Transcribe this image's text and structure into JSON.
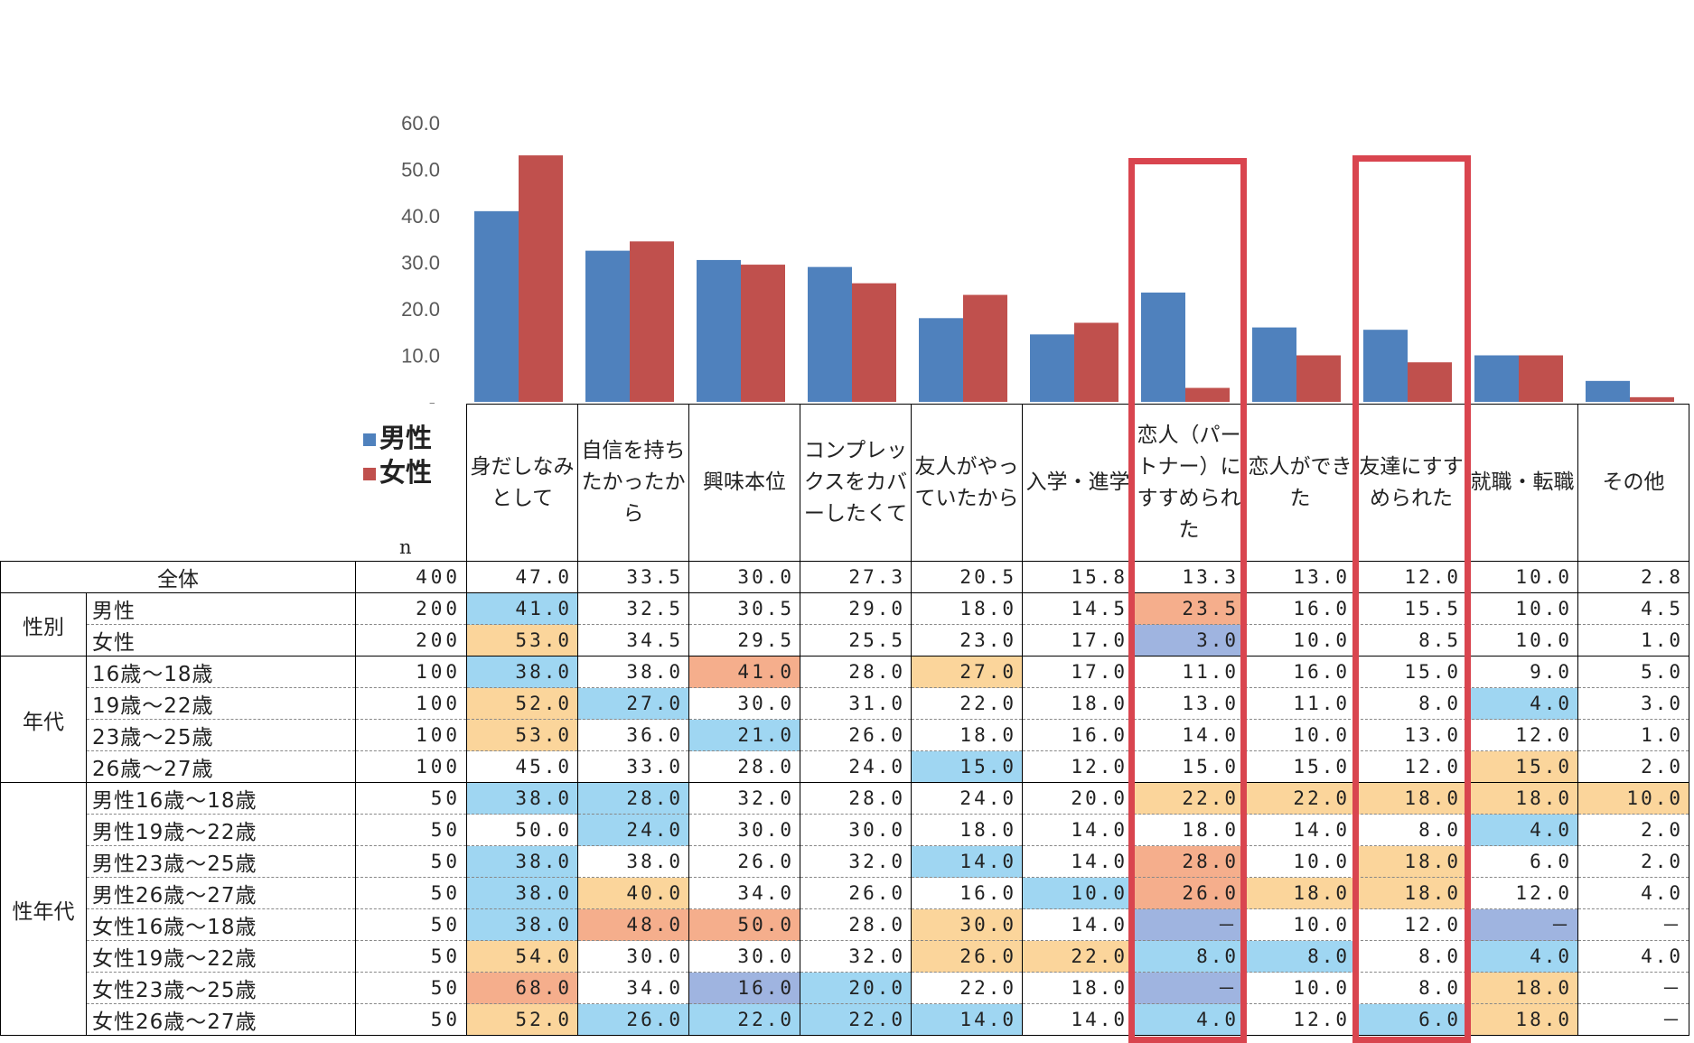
{
  "chart_data": {
    "type": "bar",
    "title": "",
    "categories": [
      "身だしなみとして",
      "自信を持ちたかったから",
      "興味本位",
      "コンプレックスをカバーしたくて",
      "友人がやっていたから",
      "入学・進学",
      "恋人（パートナー）にすすめられた",
      "恋人ができた",
      "友達にすすめられた",
      "就職・転職",
      "その他"
    ],
    "series": [
      {
        "name": "男性",
        "color": "#4f81bd",
        "values": [
          41.0,
          32.5,
          30.5,
          29.0,
          18.0,
          14.5,
          23.5,
          16.0,
          15.5,
          10.0,
          4.5
        ]
      },
      {
        "name": "女性",
        "color": "#c0504d",
        "values": [
          53.0,
          34.5,
          29.5,
          25.5,
          23.0,
          17.0,
          3.0,
          10.0,
          8.5,
          10.0,
          1.0
        ]
      }
    ],
    "y_ticks": [
      "60.0",
      "50.0",
      "40.0",
      "30.0",
      "20.0",
      "10.0",
      "-"
    ],
    "ylim": [
      0,
      60
    ],
    "xlabel": "",
    "ylabel": ""
  },
  "legend": {
    "male": "男性",
    "female": "女性"
  },
  "n_label": "n",
  "headers": [
    "身だしなみとして",
    "自信を持ちたかったから",
    "興味本位",
    "コンプレックスをカバーしたくて",
    "友人がやっていたから",
    "入学・進学",
    "恋人（パートナー）にすすめられた",
    "恋人ができた",
    "友達にすすめられた",
    "就職・転職",
    "その他"
  ],
  "colors": {
    "male": "#4f81bd",
    "female": "#c0504d",
    "highlight": "#d9454f",
    "lightblue": "#9fd6f2",
    "blue": "#9fb4e0",
    "orange": "#fbd59b",
    "salmon": "#f5ae8c"
  },
  "groups": [
    {
      "label": "全体",
      "rows": [
        {
          "label": "全体",
          "n": "400",
          "values": [
            "47.0",
            "33.5",
            "30.0",
            "27.3",
            "20.5",
            "15.8",
            "13.3",
            "13.0",
            "12.0",
            "10.0",
            "2.8"
          ],
          "fills": [
            "",
            "",
            "",
            "",
            "",
            "",
            "",
            "",
            "",
            "",
            ""
          ]
        }
      ]
    },
    {
      "label": "性別",
      "rows": [
        {
          "label": "男性",
          "n": "200",
          "values": [
            "41.0",
            "32.5",
            "30.5",
            "29.0",
            "18.0",
            "14.5",
            "23.5",
            "16.0",
            "15.5",
            "10.0",
            "4.5"
          ],
          "fills": [
            "lb",
            "",
            "",
            "",
            "",
            "",
            "s",
            "",
            "",
            "",
            ""
          ]
        },
        {
          "label": "女性",
          "n": "200",
          "values": [
            "53.0",
            "34.5",
            "29.5",
            "25.5",
            "23.0",
            "17.0",
            "3.0",
            "10.0",
            "8.5",
            "10.0",
            "1.0"
          ],
          "fills": [
            "o",
            "",
            "",
            "",
            "",
            "",
            "b",
            "",
            "",
            "",
            ""
          ]
        }
      ]
    },
    {
      "label": "年代",
      "rows": [
        {
          "label": "16歳〜18歳",
          "n": "100",
          "values": [
            "38.0",
            "38.0",
            "41.0",
            "28.0",
            "27.0",
            "17.0",
            "11.0",
            "16.0",
            "15.0",
            "9.0",
            "5.0"
          ],
          "fills": [
            "lb",
            "",
            "s",
            "",
            "o",
            "",
            "",
            "",
            "",
            "",
            ""
          ]
        },
        {
          "label": "19歳〜22歳",
          "n": "100",
          "values": [
            "52.0",
            "27.0",
            "30.0",
            "31.0",
            "22.0",
            "18.0",
            "13.0",
            "11.0",
            "8.0",
            "4.0",
            "3.0"
          ],
          "fills": [
            "o",
            "lb",
            "",
            "",
            "",
            "",
            "",
            "",
            "",
            "lb",
            ""
          ]
        },
        {
          "label": "23歳〜25歳",
          "n": "100",
          "values": [
            "53.0",
            "36.0",
            "21.0",
            "26.0",
            "18.0",
            "16.0",
            "14.0",
            "10.0",
            "13.0",
            "12.0",
            "1.0"
          ],
          "fills": [
            "o",
            "",
            "lb",
            "",
            "",
            "",
            "",
            "",
            "",
            "",
            ""
          ]
        },
        {
          "label": "26歳〜27歳",
          "n": "100",
          "values": [
            "45.0",
            "33.0",
            "28.0",
            "24.0",
            "15.0",
            "12.0",
            "15.0",
            "15.0",
            "12.0",
            "15.0",
            "2.0"
          ],
          "fills": [
            "",
            "",
            "",
            "",
            "lb",
            "",
            "",
            "",
            "",
            "o",
            ""
          ]
        }
      ]
    },
    {
      "label": "性年代",
      "rows": [
        {
          "label": "男性16歳〜18歳",
          "n": "50",
          "values": [
            "38.0",
            "28.0",
            "32.0",
            "28.0",
            "24.0",
            "20.0",
            "22.0",
            "22.0",
            "18.0",
            "18.0",
            "10.0"
          ],
          "fills": [
            "lb",
            "lb",
            "",
            "",
            "",
            "",
            "o",
            "o",
            "o",
            "o",
            "o"
          ]
        },
        {
          "label": "男性19歳〜22歳",
          "n": "50",
          "values": [
            "50.0",
            "24.0",
            "30.0",
            "30.0",
            "18.0",
            "14.0",
            "18.0",
            "14.0",
            "8.0",
            "4.0",
            "2.0"
          ],
          "fills": [
            "",
            "lb",
            "",
            "",
            "",
            "",
            "",
            "",
            "",
            "lb",
            ""
          ]
        },
        {
          "label": "男性23歳〜25歳",
          "n": "50",
          "values": [
            "38.0",
            "38.0",
            "26.0",
            "32.0",
            "14.0",
            "14.0",
            "28.0",
            "10.0",
            "18.0",
            "6.0",
            "2.0"
          ],
          "fills": [
            "lb",
            "",
            "",
            "",
            "lb",
            "",
            "s",
            "",
            "o",
            "",
            ""
          ]
        },
        {
          "label": "男性26歳〜27歳",
          "n": "50",
          "values": [
            "38.0",
            "40.0",
            "34.0",
            "26.0",
            "16.0",
            "10.0",
            "26.0",
            "18.0",
            "18.0",
            "12.0",
            "4.0"
          ],
          "fills": [
            "lb",
            "o",
            "",
            "",
            "",
            "lb",
            "s",
            "o",
            "o",
            "",
            ""
          ]
        },
        {
          "label": "女性16歳〜18歳",
          "n": "50",
          "values": [
            "38.0",
            "48.0",
            "50.0",
            "28.0",
            "30.0",
            "14.0",
            "－",
            "10.0",
            "12.0",
            "－",
            "－"
          ],
          "fills": [
            "lb",
            "s",
            "s",
            "",
            "o",
            "",
            "b",
            "",
            "",
            "b",
            ""
          ]
        },
        {
          "label": "女性19歳〜22歳",
          "n": "50",
          "values": [
            "54.0",
            "30.0",
            "30.0",
            "32.0",
            "26.0",
            "22.0",
            "8.0",
            "8.0",
            "8.0",
            "4.0",
            "4.0"
          ],
          "fills": [
            "o",
            "",
            "",
            "",
            "o",
            "o",
            "lb",
            "lb",
            "",
            "lb",
            ""
          ]
        },
        {
          "label": "女性23歳〜25歳",
          "n": "50",
          "values": [
            "68.0",
            "34.0",
            "16.0",
            "20.0",
            "22.0",
            "18.0",
            "－",
            "10.0",
            "8.0",
            "18.0",
            "－"
          ],
          "fills": [
            "s",
            "",
            "b",
            "lb",
            "",
            "",
            "b",
            "",
            "",
            "o",
            ""
          ]
        },
        {
          "label": "女性26歳〜27歳",
          "n": "50",
          "values": [
            "52.0",
            "26.0",
            "22.0",
            "22.0",
            "14.0",
            "14.0",
            "4.0",
            "12.0",
            "6.0",
            "18.0",
            "－"
          ],
          "fills": [
            "o",
            "lb",
            "lb",
            "lb",
            "lb",
            "",
            "lb",
            "",
            "lb",
            "o",
            ""
          ]
        }
      ]
    }
  ]
}
